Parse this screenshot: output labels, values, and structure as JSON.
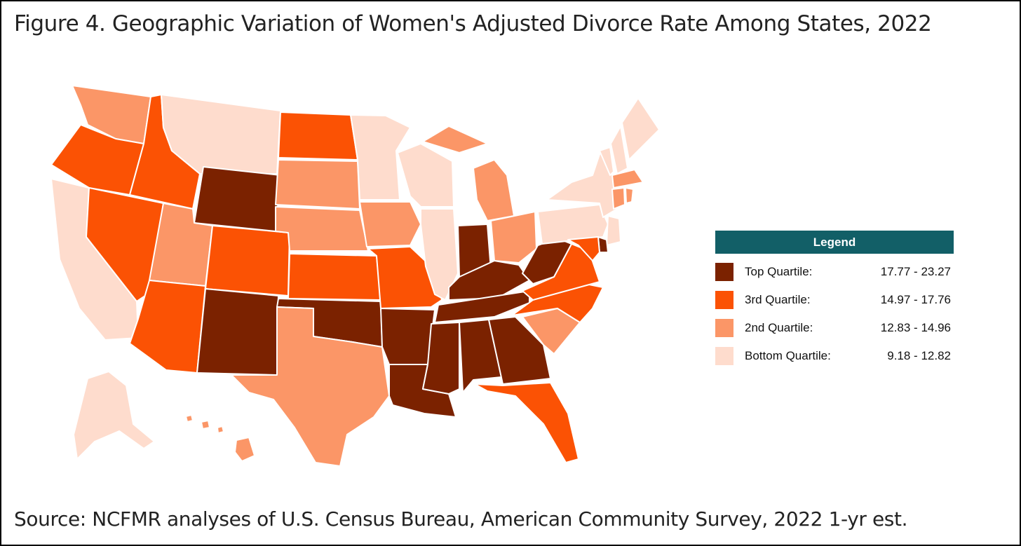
{
  "figure": {
    "title": "Figure 4.  Geographic Variation of Women's Adjusted Divorce Rate Among States, 2022",
    "source": "Source: NCFMR analyses of U.S. Census Bureau, American Community Survey, 2022 1-yr est."
  },
  "legend": {
    "title": "Legend",
    "header_color": "#125f67",
    "items": [
      {
        "label": "Top Quartile:",
        "range": "17.77  -  23.27",
        "color": "#7b2200"
      },
      {
        "label": "3rd Quartile:",
        "range": "14.97  -  17.76",
        "color": "#fb5204"
      },
      {
        "label": "2nd Quartile:",
        "range": "12.83  -  14.96",
        "color": "#fb9667"
      },
      {
        "label": "Bottom Quartile:",
        "range": "9.18  -  12.82",
        "color": "#fedccd"
      }
    ]
  },
  "map_data": {
    "metric": "Women's Adjusted Divorce Rate",
    "year": 2022,
    "quartile_by_state": {
      "WA": 2,
      "OR": 3,
      "CA": 1,
      "ID": 3,
      "NV": 3,
      "MT": 1,
      "WY": 4,
      "UT": 2,
      "AZ": 3,
      "CO": 3,
      "NM": 4,
      "ND": 3,
      "SD": 2,
      "NE": 2,
      "KS": 3,
      "OK": 4,
      "TX": 2,
      "MN": 1,
      "IA": 2,
      "MO": 3,
      "AR": 4,
      "LA": 4,
      "WI": 1,
      "IL": 1,
      "MI": 2,
      "IN": 4,
      "OH": 2,
      "KY": 4,
      "TN": 4,
      "MS": 4,
      "AL": 4,
      "GA": 4,
      "FL": 3,
      "SC": 2,
      "NC": 3,
      "VA": 3,
      "WV": 4,
      "PA": 1,
      "NY": 1,
      "VT": 1,
      "NH": 1,
      "ME": 1,
      "MA": 2,
      "CT": 2,
      "RI": 2,
      "NJ": 1,
      "DE": 4,
      "MD": 3,
      "AK": 1,
      "HI": 2
    }
  }
}
